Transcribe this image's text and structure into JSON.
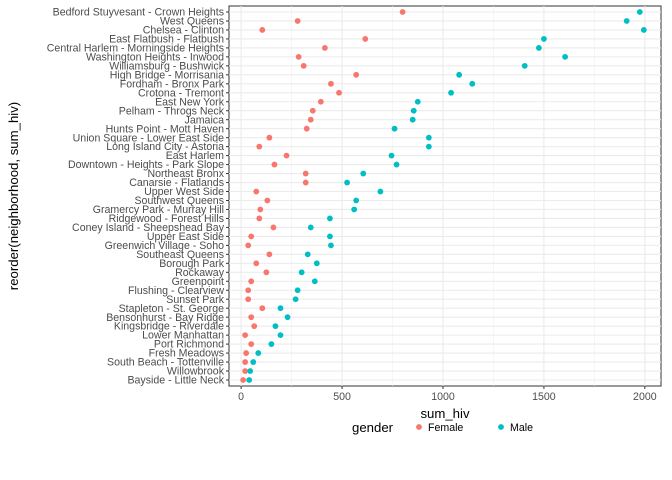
{
  "chart_data": {
    "type": "scatter",
    "xlabel": "sum_hiv",
    "ylabel": "reorder(neighborhood, sum_hiv)",
    "xlim": [
      -60,
      2080
    ],
    "x_ticks": [
      0,
      500,
      1000,
      1500,
      2000
    ],
    "grid": true,
    "legend_title": "gender",
    "legend_position": "bottom",
    "categories": [
      "Bedford Stuyvesant - Crown Heights",
      "West Queens",
      "Chelsea - Clinton",
      "East Flatbush - Flatbush",
      "Central Harlem - Morningside Heights",
      "Washington Heights - Inwood",
      "Williamsburg - Bushwick",
      "High Bridge - Morrisania",
      "Fordham - Bronx Park",
      "Crotona - Tremont",
      "East New York",
      "Pelham - Throgs Neck",
      "Jamaica",
      "Hunts Point - Mott Haven",
      "Union Square - Lower East Side",
      "Long Island City - Astoria",
      "East Harlem",
      "Downtown - Heights - Park Slope",
      "Northeast Bronx",
      "Canarsie - Flatlands",
      "Upper West Side",
      "Southwest Queens",
      "Gramercy Park - Murray Hill",
      "Ridgewood - Forest Hills",
      "Coney Island - Sheepshead Bay",
      "Upper East Side",
      "Greenwich Village - Soho",
      "Southeast Queens",
      "Borough Park",
      "Rockaway",
      "Greenpoint",
      "Flushing - Clearview",
      "Sunset Park",
      "Stapleton - St. George",
      "Bensonhurst - Bay Ridge",
      "Kingsbridge - Riverdale",
      "Lower Manhattan",
      "Port Richmond",
      "Fresh Meadows",
      "South Beach - Tottenville",
      "Willowbrook",
      "Bayside - Little Neck"
    ],
    "series": [
      {
        "name": "Female",
        "color": "#F8766D",
        "values": [
          800,
          280,
          105,
          615,
          415,
          285,
          310,
          570,
          445,
          485,
          395,
          355,
          345,
          325,
          140,
          90,
          225,
          165,
          320,
          320,
          75,
          130,
          95,
          90,
          160,
          50,
          35,
          140,
          75,
          125,
          50,
          35,
          35,
          105,
          50,
          65,
          20,
          50,
          25,
          20,
          20,
          10
        ]
      },
      {
        "name": "Male",
        "color": "#00BFC4",
        "values": [
          1975,
          1910,
          1995,
          1500,
          1475,
          1605,
          1405,
          1080,
          1145,
          1040,
          875,
          855,
          850,
          760,
          930,
          930,
          745,
          770,
          605,
          525,
          690,
          570,
          560,
          440,
          345,
          440,
          445,
          330,
          375,
          300,
          365,
          280,
          270,
          195,
          230,
          170,
          195,
          150,
          85,
          60,
          45,
          40
        ]
      }
    ]
  }
}
